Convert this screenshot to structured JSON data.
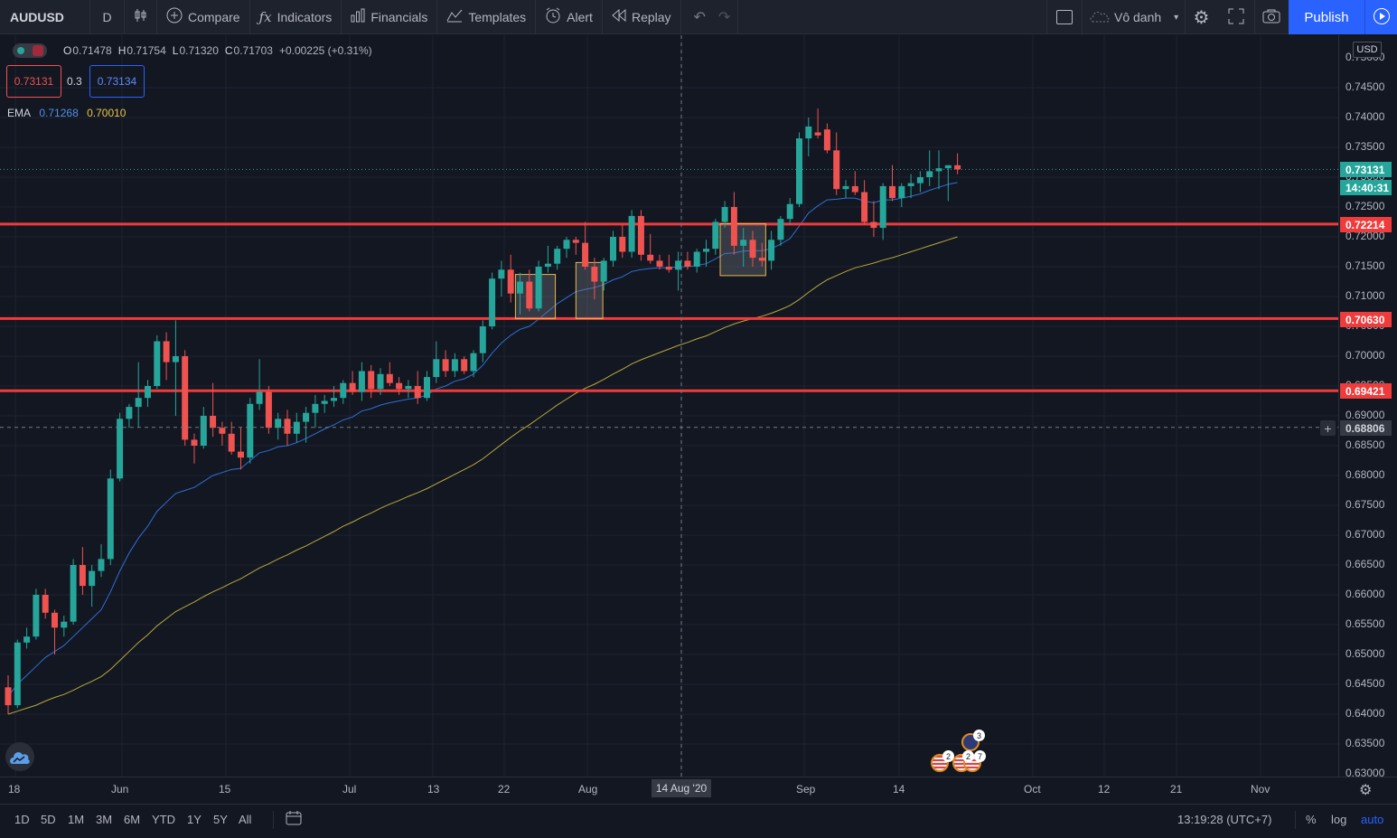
{
  "toolbar": {
    "symbol": "AUDUSD",
    "interval": "D",
    "compare_label": "Compare",
    "indicators_label": "Indicators",
    "financials_label": "Financials",
    "templates_label": "Templates",
    "alert_label": "Alert",
    "replay_label": "Replay",
    "layout_name": "Vô danh",
    "publish_label": "Publish"
  },
  "legend": {
    "open_label": "O",
    "open": "0.71478",
    "high_label": "H",
    "high": "0.71754",
    "low_label": "L",
    "low": "0.71320",
    "close_label": "C",
    "close": "0.71703",
    "change": "+0.00225 (+0.31%)",
    "sell_price": "0.73131",
    "spread": "0.3",
    "buy_price": "0.73134",
    "ema_label": "EMA",
    "ema_fast": "0.71268",
    "ema_slow": "0.70010"
  },
  "price_axis": {
    "currency": "USD",
    "ticks": [
      "0.75000",
      "0.74500",
      "0.74000",
      "0.73500",
      "0.73000",
      "0.72500",
      "0.72000",
      "0.71500",
      "0.71000",
      "0.70500",
      "0.70000",
      "0.69500",
      "0.69000",
      "0.68500",
      "0.68000",
      "0.67500",
      "0.67000",
      "0.66500",
      "0.66000",
      "0.65500",
      "0.65000",
      "0.64500",
      "0.64000",
      "0.63500",
      "0.63000"
    ],
    "last_price": "0.73131",
    "countdown": "14:40:31",
    "level_1": "0.72214",
    "level_2": "0.70630",
    "level_3": "0.69421",
    "crosshair_price": "0.68806"
  },
  "time_axis": {
    "ticks": [
      {
        "label": "18"
      },
      {
        "label": "Jun"
      },
      {
        "label": "15"
      },
      {
        "label": "Jul"
      },
      {
        "label": "13"
      },
      {
        "label": "22"
      },
      {
        "label": "Aug"
      },
      {
        "label": "Sep"
      },
      {
        "label": "14"
      },
      {
        "label": "Oct"
      },
      {
        "label": "12"
      },
      {
        "label": "21"
      },
      {
        "label": "Nov"
      }
    ],
    "crosshair_date": "14 Aug '20"
  },
  "bottom": {
    "ranges": [
      "1D",
      "5D",
      "1M",
      "3M",
      "6M",
      "YTD",
      "1Y",
      "5Y",
      "All"
    ],
    "clock": "13:19:28 (UTC+7)",
    "percent_label": "%",
    "log_label": "log",
    "auto_label": "auto"
  },
  "events": {
    "badge_1": "3",
    "badge_2": "2",
    "badge_3": "2",
    "badge_4": "7"
  },
  "colors": {
    "background": "#131722",
    "up": "#26a69a",
    "down": "#ef5350",
    "ema_fast": "#2f6fd6",
    "ema_slow": "#b7a93a",
    "level_line": "#ef3b3b",
    "accent": "#2962ff"
  },
  "chart_data": {
    "type": "candlestick",
    "symbol": "AUDUSD",
    "interval": "D",
    "ylim": [
      0.63,
      0.751
    ],
    "horizontal_levels": [
      0.72214,
      0.7063,
      0.69421
    ],
    "candles": [
      {
        "o": 0.6445,
        "h": 0.6465,
        "l": 0.64,
        "c": 0.6415
      },
      {
        "o": 0.6415,
        "h": 0.6525,
        "l": 0.641,
        "c": 0.652
      },
      {
        "o": 0.652,
        "h": 0.6545,
        "l": 0.651,
        "c": 0.653
      },
      {
        "o": 0.653,
        "h": 0.661,
        "l": 0.6525,
        "c": 0.66
      },
      {
        "o": 0.66,
        "h": 0.661,
        "l": 0.656,
        "c": 0.657
      },
      {
        "o": 0.657,
        "h": 0.6575,
        "l": 0.65,
        "c": 0.6545
      },
      {
        "o": 0.6545,
        "h": 0.6565,
        "l": 0.653,
        "c": 0.6555
      },
      {
        "o": 0.6555,
        "h": 0.666,
        "l": 0.655,
        "c": 0.665
      },
      {
        "o": 0.665,
        "h": 0.668,
        "l": 0.66,
        "c": 0.6615
      },
      {
        "o": 0.6615,
        "h": 0.665,
        "l": 0.658,
        "c": 0.664
      },
      {
        "o": 0.664,
        "h": 0.6685,
        "l": 0.663,
        "c": 0.666
      },
      {
        "o": 0.666,
        "h": 0.681,
        "l": 0.665,
        "c": 0.6795
      },
      {
        "o": 0.6795,
        "h": 0.6905,
        "l": 0.679,
        "c": 0.6895
      },
      {
        "o": 0.6895,
        "h": 0.692,
        "l": 0.688,
        "c": 0.6915
      },
      {
        "o": 0.6915,
        "h": 0.699,
        "l": 0.688,
        "c": 0.693
      },
      {
        "o": 0.693,
        "h": 0.696,
        "l": 0.6915,
        "c": 0.695
      },
      {
        "o": 0.695,
        "h": 0.7035,
        "l": 0.6945,
        "c": 0.7025
      },
      {
        "o": 0.7025,
        "h": 0.704,
        "l": 0.696,
        "c": 0.699
      },
      {
        "o": 0.699,
        "h": 0.706,
        "l": 0.69,
        "c": 0.7
      },
      {
        "o": 0.7,
        "h": 0.701,
        "l": 0.685,
        "c": 0.686
      },
      {
        "o": 0.686,
        "h": 0.687,
        "l": 0.682,
        "c": 0.685
      },
      {
        "o": 0.685,
        "h": 0.6915,
        "l": 0.6845,
        "c": 0.69
      },
      {
        "o": 0.69,
        "h": 0.6955,
        "l": 0.6865,
        "c": 0.688
      },
      {
        "o": 0.688,
        "h": 0.689,
        "l": 0.685,
        "c": 0.687
      },
      {
        "o": 0.687,
        "h": 0.689,
        "l": 0.6835,
        "c": 0.684
      },
      {
        "o": 0.684,
        "h": 0.688,
        "l": 0.681,
        "c": 0.683
      },
      {
        "o": 0.683,
        "h": 0.693,
        "l": 0.682,
        "c": 0.692
      },
      {
        "o": 0.692,
        "h": 0.6995,
        "l": 0.691,
        "c": 0.694
      },
      {
        "o": 0.694,
        "h": 0.695,
        "l": 0.687,
        "c": 0.688
      },
      {
        "o": 0.688,
        "h": 0.6905,
        "l": 0.686,
        "c": 0.6895
      },
      {
        "o": 0.6895,
        "h": 0.691,
        "l": 0.685,
        "c": 0.687
      },
      {
        "o": 0.687,
        "h": 0.6905,
        "l": 0.6855,
        "c": 0.689
      },
      {
        "o": 0.689,
        "h": 0.6915,
        "l": 0.6855,
        "c": 0.6905
      },
      {
        "o": 0.6905,
        "h": 0.6935,
        "l": 0.688,
        "c": 0.692
      },
      {
        "o": 0.692,
        "h": 0.6935,
        "l": 0.6905,
        "c": 0.6925
      },
      {
        "o": 0.6925,
        "h": 0.695,
        "l": 0.6915,
        "c": 0.693
      },
      {
        "o": 0.693,
        "h": 0.696,
        "l": 0.692,
        "c": 0.6955
      },
      {
        "o": 0.6955,
        "h": 0.6975,
        "l": 0.6935,
        "c": 0.694
      },
      {
        "o": 0.694,
        "h": 0.699,
        "l": 0.6925,
        "c": 0.6975
      },
      {
        "o": 0.6975,
        "h": 0.6985,
        "l": 0.693,
        "c": 0.6945
      },
      {
        "o": 0.6945,
        "h": 0.698,
        "l": 0.6935,
        "c": 0.697
      },
      {
        "o": 0.697,
        "h": 0.699,
        "l": 0.695,
        "c": 0.6955
      },
      {
        "o": 0.6955,
        "h": 0.6965,
        "l": 0.6935,
        "c": 0.6945
      },
      {
        "o": 0.6945,
        "h": 0.696,
        "l": 0.693,
        "c": 0.695
      },
      {
        "o": 0.695,
        "h": 0.6975,
        "l": 0.692,
        "c": 0.693
      },
      {
        "o": 0.693,
        "h": 0.6975,
        "l": 0.6925,
        "c": 0.6965
      },
      {
        "o": 0.6965,
        "h": 0.7025,
        "l": 0.6955,
        "c": 0.6995
      },
      {
        "o": 0.6995,
        "h": 0.701,
        "l": 0.6965,
        "c": 0.6975
      },
      {
        "o": 0.6975,
        "h": 0.7005,
        "l": 0.6965,
        "c": 0.6995
      },
      {
        "o": 0.6995,
        "h": 0.7,
        "l": 0.697,
        "c": 0.6975
      },
      {
        "o": 0.6975,
        "h": 0.701,
        "l": 0.6965,
        "c": 0.7005
      },
      {
        "o": 0.7005,
        "h": 0.706,
        "l": 0.699,
        "c": 0.705
      },
      {
        "o": 0.705,
        "h": 0.714,
        "l": 0.7045,
        "c": 0.713
      },
      {
        "o": 0.713,
        "h": 0.716,
        "l": 0.71,
        "c": 0.7145
      },
      {
        "o": 0.7145,
        "h": 0.717,
        "l": 0.709,
        "c": 0.7105
      },
      {
        "o": 0.7105,
        "h": 0.714,
        "l": 0.707,
        "c": 0.7125
      },
      {
        "o": 0.7125,
        "h": 0.7145,
        "l": 0.7075,
        "c": 0.708
      },
      {
        "o": 0.708,
        "h": 0.716,
        "l": 0.7075,
        "c": 0.715
      },
      {
        "o": 0.715,
        "h": 0.7185,
        "l": 0.714,
        "c": 0.7155
      },
      {
        "o": 0.7155,
        "h": 0.7185,
        "l": 0.7145,
        "c": 0.718
      },
      {
        "o": 0.718,
        "h": 0.72,
        "l": 0.7165,
        "c": 0.7195
      },
      {
        "o": 0.7195,
        "h": 0.72,
        "l": 0.717,
        "c": 0.719
      },
      {
        "o": 0.719,
        "h": 0.7225,
        "l": 0.7145,
        "c": 0.715
      },
      {
        "o": 0.715,
        "h": 0.7165,
        "l": 0.7095,
        "c": 0.7125
      },
      {
        "o": 0.7125,
        "h": 0.7165,
        "l": 0.711,
        "c": 0.716
      },
      {
        "o": 0.716,
        "h": 0.721,
        "l": 0.715,
        "c": 0.72
      },
      {
        "o": 0.72,
        "h": 0.722,
        "l": 0.7165,
        "c": 0.7175
      },
      {
        "o": 0.7175,
        "h": 0.7245,
        "l": 0.7165,
        "c": 0.7235
      },
      {
        "o": 0.7235,
        "h": 0.7245,
        "l": 0.716,
        "c": 0.717
      },
      {
        "o": 0.717,
        "h": 0.7205,
        "l": 0.7155,
        "c": 0.716
      },
      {
        "o": 0.716,
        "h": 0.717,
        "l": 0.7145,
        "c": 0.715
      },
      {
        "o": 0.715,
        "h": 0.717,
        "l": 0.714,
        "c": 0.7145
      },
      {
        "o": 0.7145,
        "h": 0.7175,
        "l": 0.711,
        "c": 0.716
      },
      {
        "o": 0.716,
        "h": 0.7175,
        "l": 0.7145,
        "c": 0.715
      },
      {
        "o": 0.715,
        "h": 0.718,
        "l": 0.714,
        "c": 0.7175
      },
      {
        "o": 0.7175,
        "h": 0.7195,
        "l": 0.715,
        "c": 0.718
      },
      {
        "o": 0.718,
        "h": 0.723,
        "l": 0.717,
        "c": 0.7225
      },
      {
        "o": 0.7225,
        "h": 0.726,
        "l": 0.7215,
        "c": 0.725
      },
      {
        "o": 0.725,
        "h": 0.7275,
        "l": 0.717,
        "c": 0.7185
      },
      {
        "o": 0.7185,
        "h": 0.7215,
        "l": 0.715,
        "c": 0.7195
      },
      {
        "o": 0.7195,
        "h": 0.721,
        "l": 0.715,
        "c": 0.7165
      },
      {
        "o": 0.7165,
        "h": 0.719,
        "l": 0.715,
        "c": 0.716
      },
      {
        "o": 0.716,
        "h": 0.721,
        "l": 0.7145,
        "c": 0.7195
      },
      {
        "o": 0.7195,
        "h": 0.7235,
        "l": 0.7185,
        "c": 0.723
      },
      {
        "o": 0.723,
        "h": 0.7265,
        "l": 0.722,
        "c": 0.7255
      },
      {
        "o": 0.7255,
        "h": 0.7375,
        "l": 0.725,
        "c": 0.7365
      },
      {
        "o": 0.7365,
        "h": 0.74,
        "l": 0.7335,
        "c": 0.7385
      },
      {
        "o": 0.7375,
        "h": 0.7415,
        "l": 0.7365,
        "c": 0.737
      },
      {
        "o": 0.738,
        "h": 0.739,
        "l": 0.734,
        "c": 0.7345
      },
      {
        "o": 0.7345,
        "h": 0.7375,
        "l": 0.727,
        "c": 0.728
      },
      {
        "o": 0.728,
        "h": 0.7295,
        "l": 0.7265,
        "c": 0.7285
      },
      {
        "o": 0.7285,
        "h": 0.731,
        "l": 0.727,
        "c": 0.7275
      },
      {
        "o": 0.7275,
        "h": 0.7295,
        "l": 0.722,
        "c": 0.7225
      },
      {
        "o": 0.7225,
        "h": 0.726,
        "l": 0.72,
        "c": 0.7215
      },
      {
        "o": 0.7215,
        "h": 0.729,
        "l": 0.7195,
        "c": 0.7285
      },
      {
        "o": 0.7285,
        "h": 0.732,
        "l": 0.726,
        "c": 0.7265
      },
      {
        "o": 0.7265,
        "h": 0.729,
        "l": 0.725,
        "c": 0.7285
      },
      {
        "o": 0.7285,
        "h": 0.7305,
        "l": 0.7265,
        "c": 0.729
      },
      {
        "o": 0.729,
        "h": 0.731,
        "l": 0.7275,
        "c": 0.73
      },
      {
        "o": 0.73,
        "h": 0.7345,
        "l": 0.7285,
        "c": 0.731
      },
      {
        "o": 0.731,
        "h": 0.7345,
        "l": 0.728,
        "c": 0.7315
      },
      {
        "o": 0.7315,
        "h": 0.732,
        "l": 0.726,
        "c": 0.732
      },
      {
        "o": 0.732,
        "h": 0.734,
        "l": 0.7305,
        "c": 0.7313
      }
    ],
    "ema_fast": [
      0.643,
      0.645,
      0.6465,
      0.648,
      0.6495,
      0.6505,
      0.6515,
      0.653,
      0.6545,
      0.656,
      0.6575,
      0.6605,
      0.664,
      0.667,
      0.6695,
      0.6715,
      0.674,
      0.6755,
      0.677,
      0.6775,
      0.678,
      0.679,
      0.68,
      0.6805,
      0.681,
      0.6812,
      0.6825,
      0.6838,
      0.6842,
      0.6848,
      0.685,
      0.6855,
      0.6862,
      0.687,
      0.6878,
      0.6885,
      0.6893,
      0.6898,
      0.6908,
      0.6912,
      0.6918,
      0.6922,
      0.6925,
      0.6928,
      0.693,
      0.6935,
      0.6945,
      0.695,
      0.6958,
      0.6962,
      0.697,
      0.6985,
      0.7005,
      0.7022,
      0.7035,
      0.7045,
      0.705,
      0.7062,
      0.7075,
      0.7088,
      0.7098,
      0.7108,
      0.7112,
      0.7115,
      0.712,
      0.7128,
      0.7133,
      0.7142,
      0.7145,
      0.7147,
      0.7148,
      0.7148,
      0.715,
      0.715,
      0.7152,
      0.7155,
      0.7163,
      0.7172,
      0.7173,
      0.7176,
      0.7177,
      0.7177,
      0.718,
      0.7188,
      0.7197,
      0.7218,
      0.724,
      0.7252,
      0.7262,
      0.7263,
      0.7265,
      0.7265,
      0.726,
      0.7257,
      0.7262,
      0.7262,
      0.7265,
      0.7268,
      0.7272,
      0.7278,
      0.7283,
      0.7288,
      0.7291
    ],
    "ema_slow": [
      0.64,
      0.6405,
      0.641,
      0.6415,
      0.6422,
      0.6428,
      0.6433,
      0.644,
      0.6448,
      0.6455,
      0.6463,
      0.6475,
      0.649,
      0.6505,
      0.652,
      0.6533,
      0.6548,
      0.656,
      0.6572,
      0.658,
      0.6588,
      0.6597,
      0.6605,
      0.6612,
      0.662,
      0.6627,
      0.6636,
      0.6645,
      0.6652,
      0.666,
      0.6667,
      0.6675,
      0.6682,
      0.669,
      0.6698,
      0.6706,
      0.6715,
      0.6722,
      0.673,
      0.6737,
      0.6745,
      0.6752,
      0.6758,
      0.6765,
      0.6771,
      0.6778,
      0.6786,
      0.6794,
      0.6802,
      0.681,
      0.6818,
      0.6828,
      0.684,
      0.6852,
      0.6864,
      0.6875,
      0.6885,
      0.6896,
      0.6907,
      0.6918,
      0.6928,
      0.6938,
      0.6946,
      0.6953,
      0.6961,
      0.697,
      0.6978,
      0.6987,
      0.6994,
      0.7,
      0.7006,
      0.7012,
      0.7018,
      0.7023,
      0.7029,
      0.7034,
      0.7041,
      0.7048,
      0.7054,
      0.7059,
      0.7063,
      0.7067,
      0.7072,
      0.7078,
      0.7085,
      0.7095,
      0.7107,
      0.7118,
      0.7128,
      0.7135,
      0.7142,
      0.7148,
      0.7152,
      0.7156,
      0.7161,
      0.7165,
      0.717,
      0.7175,
      0.718,
      0.7185,
      0.719,
      0.7195,
      0.72
    ]
  }
}
